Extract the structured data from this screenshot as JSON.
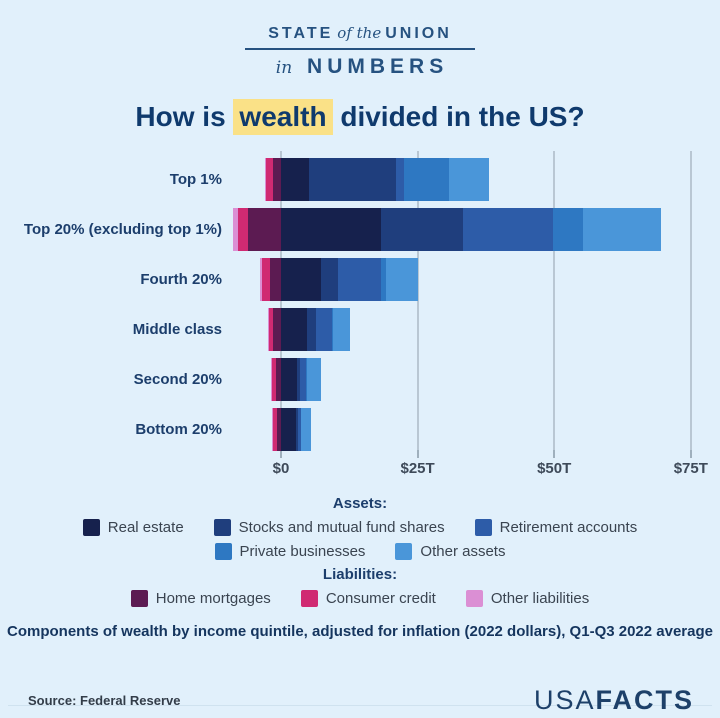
{
  "header": {
    "line1_pre": "STATE",
    "line1_mid": "of the",
    "line1_post": "UNION",
    "line2_pre": "in",
    "line2_post": "NUMBERS"
  },
  "title": {
    "pre": "How is ",
    "highlight": "wealth",
    "post": " divided in the US?"
  },
  "chart_data": {
    "type": "bar",
    "orientation": "horizontal",
    "stacked": true,
    "unit": "trillions of USD",
    "x_ticks": [
      {
        "label": "$0",
        "value": 0
      },
      {
        "label": "$25T",
        "value": 25
      },
      {
        "label": "$50T",
        "value": 50
      },
      {
        "label": "$75T",
        "value": 75
      }
    ],
    "xlim": [
      -9,
      78
    ],
    "grid": true,
    "asset_keys": [
      "real_estate",
      "stocks",
      "retirement",
      "private_businesses",
      "other_assets"
    ],
    "liability_keys": [
      "home_mortgages",
      "consumer_credit",
      "other_liabilities"
    ],
    "series_meta": {
      "real_estate": {
        "name": "Real estate",
        "color": "#16214d"
      },
      "stocks": {
        "name": "Stocks and mutual fund shares",
        "color": "#1f3e7d"
      },
      "retirement": {
        "name": "Retirement accounts",
        "color": "#2d5ca8"
      },
      "private_businesses": {
        "name": "Private businesses",
        "color": "#2e78c2"
      },
      "other_assets": {
        "name": "Other assets",
        "color": "#4a96d9"
      },
      "home_mortgages": {
        "name": "Home mortgages",
        "color": "#5c1b52"
      },
      "consumer_credit": {
        "name": "Consumer credit",
        "color": "#d02a72"
      },
      "other_liabilities": {
        "name": "Other liabilities",
        "color": "#db8fd4"
      }
    },
    "categories": [
      "Top 1%",
      "Top 20% (excluding top 1%)",
      "Fourth 20%",
      "Middle class",
      "Second 20%",
      "Bottom 20%"
    ],
    "rows": [
      {
        "label": "Top 1%",
        "real_estate": 5.1,
        "stocks": 15.9,
        "retirement": 1.5,
        "private_businesses": 8.2,
        "other_assets": 7.3,
        "home_mortgages": 1.5,
        "consumer_credit": 1.2,
        "other_liabilities": 0.2
      },
      {
        "label": "Top 20% (excluding top 1%)",
        "real_estate": 18.3,
        "stocks": 15.0,
        "retirement": 16.5,
        "private_businesses": 5.5,
        "other_assets": 14.3,
        "home_mortgages": 6.0,
        "consumer_credit": 1.8,
        "other_liabilities": 0.9
      },
      {
        "label": "Fourth 20%",
        "real_estate": 7.3,
        "stocks": 3.1,
        "retirement": 7.9,
        "private_businesses": 0.9,
        "other_assets": 5.9,
        "home_mortgages": 2.0,
        "consumer_credit": 1.5,
        "other_liabilities": 0.4
      },
      {
        "label": "Middle class",
        "real_estate": 4.8,
        "stocks": 1.6,
        "retirement": 2.9,
        "private_businesses": 0.3,
        "other_assets": 3.1,
        "home_mortgages": 1.4,
        "consumer_credit": 0.8,
        "other_liabilities": 0.2
      },
      {
        "label": "Second 20%",
        "real_estate": 2.9,
        "stocks": 0.5,
        "retirement": 1.2,
        "private_businesses": 0.2,
        "other_assets": 2.5,
        "home_mortgages": 0.9,
        "consumer_credit": 0.7,
        "other_liabilities": 0.2
      },
      {
        "label": "Bottom 20%",
        "real_estate": 2.7,
        "stocks": 0.4,
        "retirement": 0.5,
        "private_businesses": 0.1,
        "other_assets": 1.8,
        "home_mortgages": 0.7,
        "consumer_credit": 0.7,
        "other_liabilities": 0.2
      }
    ]
  },
  "legend": {
    "assets_heading": "Assets:",
    "liabilities_heading": "Liabilities:",
    "assets_row1_keys": [
      "real_estate",
      "stocks",
      "retirement"
    ],
    "assets_row2_keys": [
      "private_businesses",
      "other_assets"
    ],
    "liabilities_row_keys": [
      "home_mortgages",
      "consumer_credit",
      "other_liabilities"
    ]
  },
  "footnote": "Components of wealth by income quintile, adjusted for inflation (2022 dollars), Q1-Q3 2022 average",
  "source": "Source: Federal Reserve",
  "brand": {
    "usa": "USA",
    "facts": "FACTS"
  }
}
